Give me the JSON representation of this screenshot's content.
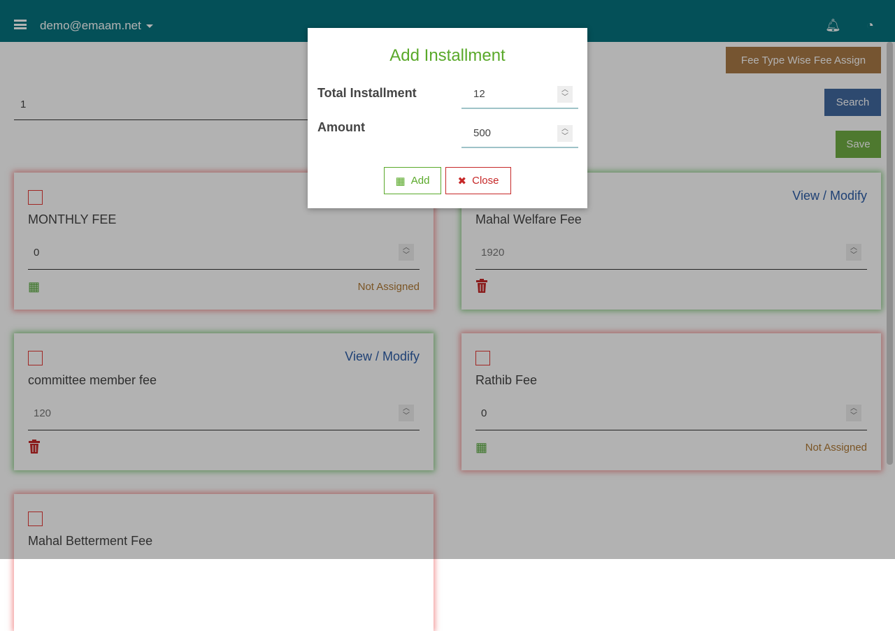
{
  "header": {
    "user": "demo@emaam.net"
  },
  "toolbar": {
    "fee_type_btn": "Fee Type Wise Fee Assign",
    "search": "Search",
    "save": "Save",
    "search_value": "1"
  },
  "cards": [
    {
      "name": "MONTHLY FEE",
      "value": "0",
      "status": "Not Assigned",
      "link": ""
    },
    {
      "name": "Mahal Welfare Fee",
      "value": "1920",
      "status": "",
      "link": "View / Modify"
    },
    {
      "name": "committee member fee",
      "value": "120",
      "status": "",
      "link": "View / Modify"
    },
    {
      "name": "Rathib Fee",
      "value": "0",
      "status": "Not Assigned",
      "link": ""
    },
    {
      "name": "Mahal Betterment Fee",
      "value": "",
      "status": "",
      "link": ""
    }
  ],
  "modal": {
    "title": "Add Installment",
    "total_label": "Total Installment",
    "total_value": "12",
    "amount_label": "Amount",
    "amount_value": "500",
    "add": "Add",
    "close": "Close"
  },
  "colors": {
    "header": "#07737e",
    "accent_green": "#5aa92a",
    "danger": "#c62828"
  }
}
